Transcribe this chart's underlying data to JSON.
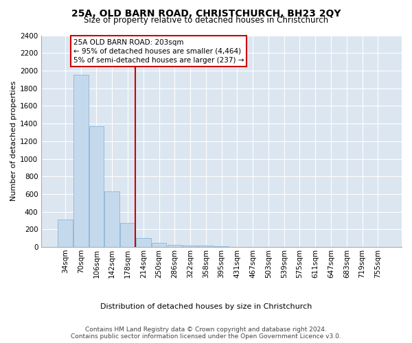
{
  "title1": "25A, OLD BARN ROAD, CHRISTCHURCH, BH23 2QY",
  "title2": "Size of property relative to detached houses in Christchurch",
  "xlabel": "Distribution of detached houses by size in Christchurch",
  "ylabel": "Number of detached properties",
  "bar_color": "#c5d9ed",
  "bar_edge_color": "#7badd4",
  "background_color": "#dce6f1",
  "grid_color": "#ffffff",
  "categories": [
    "34sqm",
    "70sqm",
    "106sqm",
    "142sqm",
    "178sqm",
    "214sqm",
    "250sqm",
    "286sqm",
    "322sqm",
    "358sqm",
    "395sqm",
    "431sqm",
    "467sqm",
    "503sqm",
    "539sqm",
    "575sqm",
    "611sqm",
    "647sqm",
    "683sqm",
    "719sqm",
    "755sqm"
  ],
  "values": [
    315,
    1950,
    1370,
    630,
    270,
    100,
    45,
    25,
    20,
    15,
    5,
    0,
    0,
    0,
    0,
    0,
    0,
    0,
    0,
    0,
    0
  ],
  "vline_x": 4.5,
  "vline_color": "#cc0000",
  "annotation_text": "25A OLD BARN ROAD: 203sqm\n← 95% of detached houses are smaller (4,464)\n5% of semi-detached houses are larger (237) →",
  "annotation_box_color": "#cc0000",
  "annotation_text_color": "#000000",
  "ylim": [
    0,
    2400
  ],
  "yticks": [
    0,
    200,
    400,
    600,
    800,
    1000,
    1200,
    1400,
    1600,
    1800,
    2000,
    2200,
    2400
  ],
  "footnote1": "Contains HM Land Registry data © Crown copyright and database right 2024.",
  "footnote2": "Contains public sector information licensed under the Open Government Licence v3.0.",
  "title1_fontsize": 10,
  "title2_fontsize": 8.5,
  "xlabel_fontsize": 8,
  "ylabel_fontsize": 8,
  "tick_fontsize": 7.5,
  "annotation_fontsize": 7.5,
  "footnote_fontsize": 6.5
}
